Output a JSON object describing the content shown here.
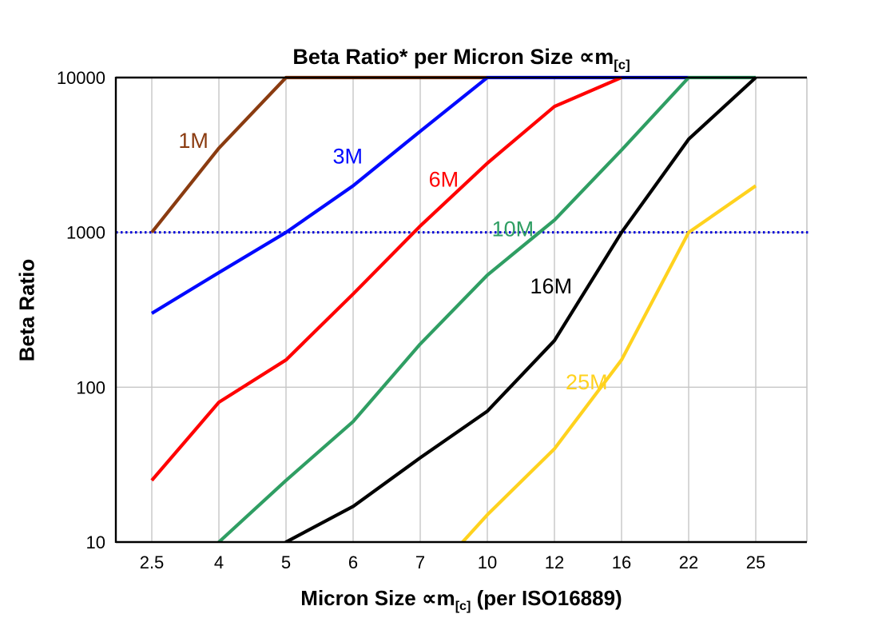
{
  "chart": {
    "title": {
      "text_before": "Beta Ratio* per Micron Size ",
      "symbol": "∝m",
      "subscript": "[c]"
    },
    "xlabel": {
      "text_before": "Micron Size ",
      "symbol": "∝m",
      "subscript": "[c]",
      "text_after": " (per ISO16889)"
    },
    "ylabel": "Beta Ratio"
  },
  "chart_data": {
    "type": "line",
    "title": "Beta Ratio* per Micron Size ∝m[c]",
    "xlabel": "Micron Size ∝m[c] (per ISO16889)",
    "ylabel": "Beta Ratio",
    "x_categories": [
      "2.5",
      "4",
      "5",
      "6",
      "7",
      "10",
      "12",
      "16",
      "22",
      "25"
    ],
    "y_scale": "log",
    "y_ticks": [
      "10",
      "100",
      "1000",
      "10000"
    ],
    "ylim": [
      10,
      10000
    ],
    "grid": true,
    "grid_color": "#c6c6c6",
    "reference_line": {
      "y": 1000,
      "color": "#0000d8",
      "style": "dotted"
    },
    "series": [
      {
        "name": "1M",
        "color": "#8a3b10",
        "values": [
          1000,
          3500,
          10000,
          10000,
          10000,
          10000,
          null,
          null,
          null,
          null
        ],
        "label": {
          "xi": 0.62,
          "y": 3900
        }
      },
      {
        "name": "3M",
        "color": "#0009ff",
        "values": [
          300,
          550,
          1000,
          2000,
          4500,
          10000,
          10000,
          10000,
          10000,
          null
        ],
        "label": {
          "xi": 2.92,
          "y": 3100
        }
      },
      {
        "name": "6M",
        "color": "#ff0000",
        "values": [
          25,
          80,
          150,
          400,
          1100,
          2800,
          6500,
          10000,
          null,
          null
        ],
        "label": {
          "xi": 4.35,
          "y": 2200
        }
      },
      {
        "name": "10M",
        "color": "#2f9e63",
        "values": [
          3,
          10,
          25,
          60,
          190,
          530,
          1200,
          3400,
          10000,
          10000
        ],
        "label": {
          "xi": 5.38,
          "y": 1050
        }
      },
      {
        "name": "16M",
        "color": "#000000",
        "values": [
          null,
          4,
          10,
          17,
          35,
          70,
          200,
          1000,
          4000,
          10000
        ],
        "label": {
          "xi": 5.95,
          "y": 450
        }
      },
      {
        "name": "25M",
        "color": "#ffd21e",
        "values": [
          null,
          null,
          null,
          null,
          5,
          15,
          40,
          150,
          1000,
          2000
        ],
        "label": {
          "xi": 6.48,
          "y": 108
        }
      }
    ]
  }
}
